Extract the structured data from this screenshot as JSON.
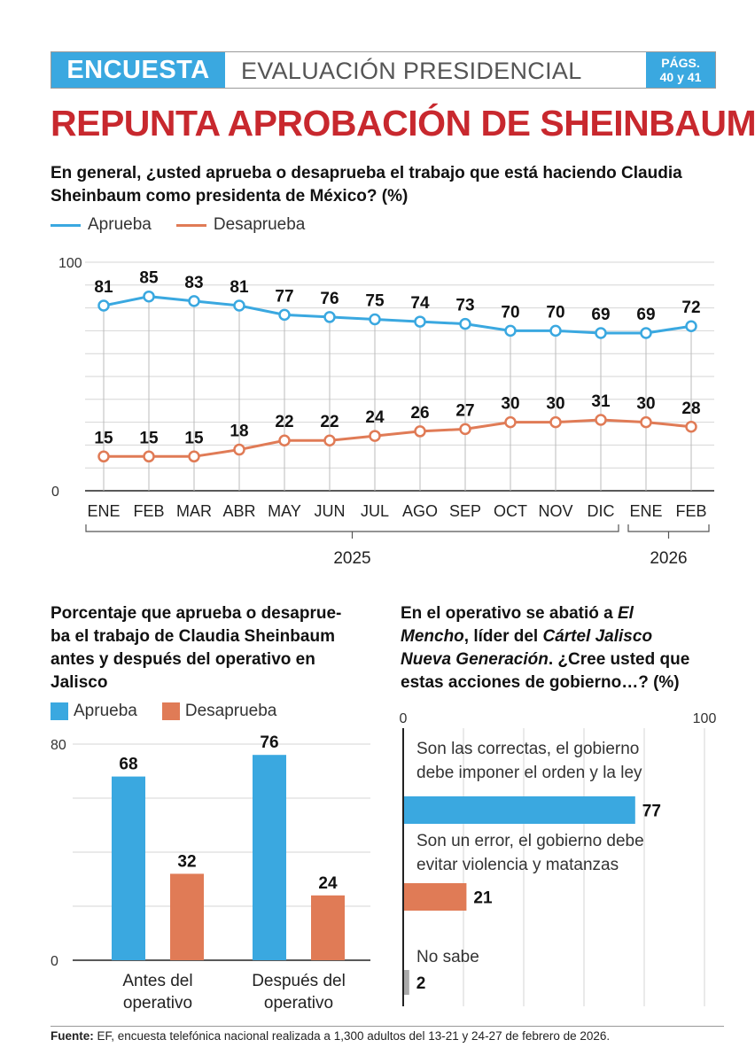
{
  "header": {
    "tag": "ENCUESTA",
    "section": "EVALUACIÓN PRESIDENCIAL",
    "pages_line1": "PÁGS.",
    "pages_line2": "40 y 41"
  },
  "headline": "REPUNTA APROBACIÓN DE SHEINBAUM",
  "colors": {
    "blue": "#3aa8e0",
    "orange": "#e07b56",
    "gray": "#aaaaaa",
    "red": "#c8282e"
  },
  "chart_data": [
    {
      "type": "line",
      "title": "En general, ¿usted aprueba o desaprueba el trabajo que está haciendo Claudia Sheinbaum como presidenta de México? (%)",
      "categories": [
        "ENE",
        "FEB",
        "MAR",
        "ABR",
        "MAY",
        "JUN",
        "JUL",
        "AGO",
        "SEP",
        "OCT",
        "NOV",
        "DIC",
        "ENE",
        "FEB"
      ],
      "series": [
        {
          "name": "Aprueba",
          "values": [
            81,
            85,
            83,
            81,
            77,
            76,
            75,
            74,
            73,
            70,
            70,
            69,
            69,
            72
          ]
        },
        {
          "name": "Desaprueba",
          "values": [
            15,
            15,
            15,
            18,
            22,
            22,
            24,
            26,
            27,
            30,
            30,
            31,
            30,
            28
          ]
        }
      ],
      "ylim": [
        0,
        100
      ],
      "ytick_labels": [
        "0",
        "100"
      ],
      "year_groups": [
        {
          "label": "2025",
          "from": 0,
          "to": 11
        },
        {
          "label": "2026",
          "from": 12,
          "to": 13
        }
      ],
      "grid": true,
      "legend": "top-left"
    },
    {
      "type": "bar",
      "title": "Porcentaje que aprueba o desaprueba el trabajo de Claudia Sheinbaum antes y después del operativo en Jalisco",
      "title_lines": [
        "Porcentaje que aprueba o desaprue-",
        "ba el trabajo de Claudia Sheinbaum",
        "antes y después del operativo en",
        "Jalisco"
      ],
      "categories": [
        "Antes del operativo",
        "Después del operativo"
      ],
      "category_lines": [
        [
          "Antes del",
          "operativo"
        ],
        [
          "Después del",
          "operativo"
        ]
      ],
      "series": [
        {
          "name": "Aprueba",
          "values": [
            68,
            76
          ]
        },
        {
          "name": "Desaprueba",
          "values": [
            32,
            24
          ]
        }
      ],
      "ylim": [
        0,
        80
      ],
      "ytick_labels": [
        "0",
        "80"
      ],
      "grid": true,
      "legend": "top-left"
    },
    {
      "type": "bar",
      "orientation": "horizontal",
      "title": "En el operativo se abatió a El Mencho, líder del Cártel Jalisco Nueva Generación. ¿Cree usted que estas acciones de gobierno…? (%)",
      "categories": [
        "Son las correctas, el gobierno debe imponer el orden y la ley",
        "Son un error, el gobierno debe evitar violencia y matanzas",
        "No sabe"
      ],
      "category_lines": [
        [
          "Son las correctas, el gobierno",
          "debe imponer el orden y la ley"
        ],
        [
          "Son un error, el gobierno debe",
          "evitar violencia y matanzas"
        ],
        [
          "No sabe"
        ]
      ],
      "values": [
        77,
        21,
        2
      ],
      "xlim": [
        0,
        100
      ],
      "xtick_labels": [
        "0",
        "100"
      ],
      "grid": true
    }
  ],
  "q3_parts": {
    "p1": "En el operativo se abatió a ",
    "p2": "El",
    "p3": "Mencho",
    "p4": ", líder del ",
    "p5": "Cártel Jalisco",
    "p6": "Nueva Generación",
    "p7": ". ¿Cree usted que",
    "p8": "estas acciones de gobierno…? (%)"
  },
  "legend_labels": {
    "approve": "Aprueba",
    "disapprove": "Desaprueba"
  },
  "source": {
    "label": "Fuente:",
    "text": "EF, encuesta telefónica nacional realizada a 1,300 adultos del 13-21 y 24-27 de febrero de 2026."
  }
}
